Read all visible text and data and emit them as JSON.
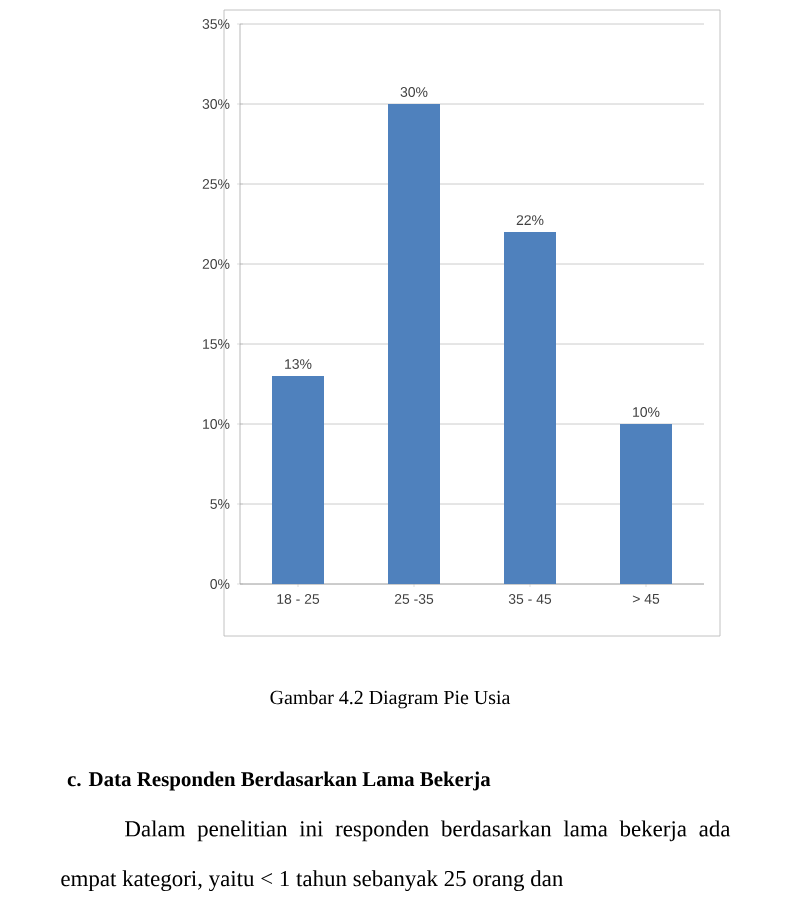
{
  "chart_data": {
    "type": "bar",
    "categories": [
      "18 - 25",
      "25 -35",
      "35 - 45",
      "> 45"
    ],
    "values": [
      13,
      30,
      22,
      10
    ],
    "color": "#4f81bd",
    "value_labels": [
      "13%",
      "30%",
      "22%",
      "10%"
    ],
    "ylim": [
      0,
      35
    ],
    "yticks": [
      {
        "value": 0,
        "label": "0%"
      },
      {
        "value": 5,
        "label": "5%"
      },
      {
        "value": 10,
        "label": "10%"
      },
      {
        "value": 15,
        "label": "15%"
      },
      {
        "value": 20,
        "label": "20%"
      },
      {
        "value": 25,
        "label": "25%"
      },
      {
        "value": 30,
        "label": "30%"
      },
      {
        "value": 35,
        "label": "35%"
      }
    ],
    "grid": "y",
    "annotations": [
      "Gambar 4.2 Diagram Pie Usia",
      "c. Data Responden Berdasarkan Lama Bekerja",
      "Dalam penelitian ini responden berdasarkan lama bekerja ada empat kategori, yaitu < 1 tahun sebanyak 25 orang dan"
    ]
  }
}
